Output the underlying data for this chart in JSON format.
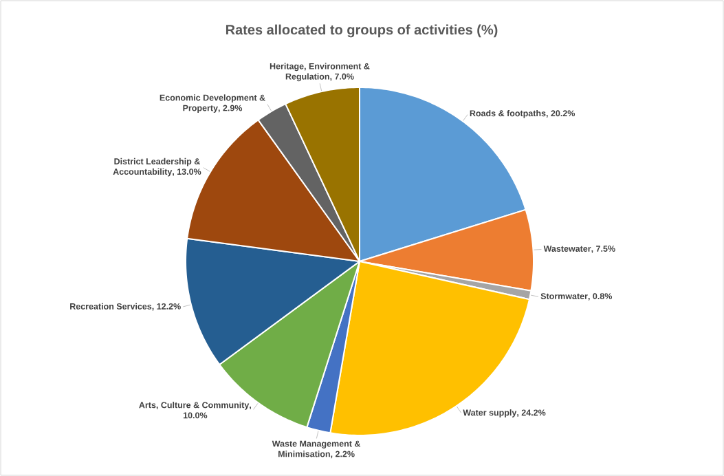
{
  "chart_data": {
    "type": "pie",
    "title": "Rates allocated to groups of activities (%)",
    "categories": [
      "Roads & footpaths",
      "Wastewater",
      "Stormwater",
      "Water supply",
      "Waste Management & Minimisation",
      "Arts, Culture & Community",
      "Recreation Services",
      "District Leadership & Accountability",
      "Economic Development & Property",
      "Heritage, Environment & Regulation"
    ],
    "values": [
      20.2,
      7.5,
      0.8,
      24.2,
      2.2,
      10.0,
      12.2,
      13.0,
      2.9,
      7.0
    ],
    "value_labels": [
      ", 20.2%",
      ", 7.5%",
      ", 0.8%",
      ", 24.2%",
      ", 2.2%",
      ", 10.0%",
      ", 12.2%",
      ", 13.0%",
      ", 2.9%",
      ", 7.0%"
    ],
    "colors": [
      "#5b9bd5",
      "#ed7d31",
      "#a5a5a5",
      "#ffc000",
      "#4472c4",
      "#70ad47",
      "#255e91",
      "#9e480e",
      "#636363",
      "#997300"
    ]
  }
}
